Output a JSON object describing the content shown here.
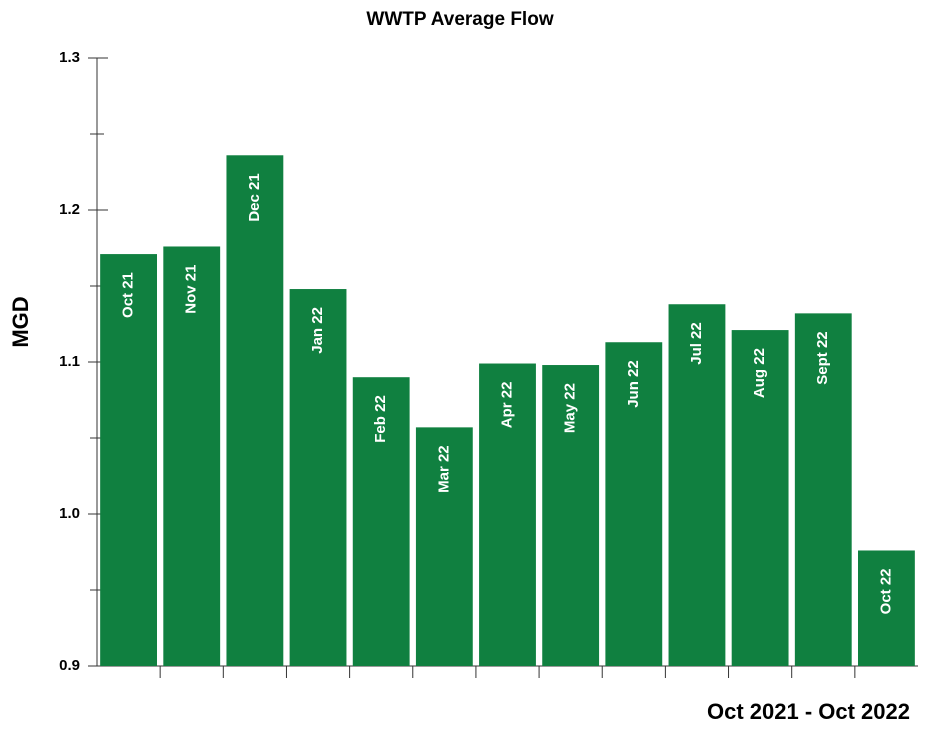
{
  "chart_data": {
    "type": "bar",
    "title": "WWTP Average Flow",
    "x_label": "Oct 2021 - Oct 2022",
    "y_label": "MGD",
    "categories": [
      "Oct 21",
      "Nov 21",
      "Dec 21",
      "Jan 22",
      "Feb 22",
      "Mar 22",
      "Apr 22",
      "May 22",
      "Jun 22",
      "Jul 22",
      "Aug 22",
      "Sept 22",
      "Oct 22"
    ],
    "values": [
      1.171,
      1.176,
      1.236,
      1.148,
      1.09,
      1.057,
      1.099,
      1.098,
      1.113,
      1.138,
      1.121,
      1.132,
      0.976
    ],
    "color": "#108040",
    "ylim": [
      0.9,
      1.3
    ],
    "yticks": [
      {
        "value": 0.9,
        "label": "0.9"
      },
      {
        "value": 1.0,
        "label": "1.0"
      },
      {
        "value": 1.1,
        "label": "1.1"
      },
      {
        "value": 1.2,
        "label": "1.2"
      },
      {
        "value": 1.3,
        "label": "1.3"
      }
    ],
    "minor_yticks": [
      0.95,
      1.05,
      1.15,
      1.25
    ],
    "grid": false
  }
}
